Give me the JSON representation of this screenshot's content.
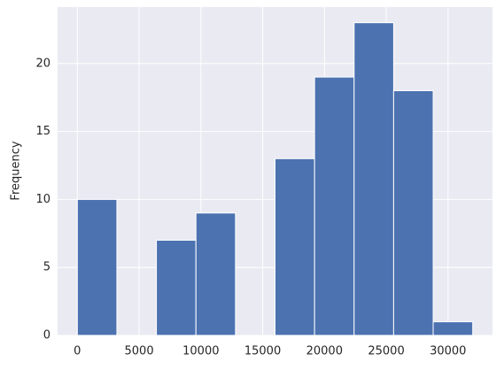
{
  "chart_data": {
    "type": "histogram",
    "y_label": "Frequency",
    "bins": [
      0,
      3200,
      6400,
      9600,
      12800,
      16000,
      19200,
      22400,
      25600,
      28800,
      32000
    ],
    "values": [
      10,
      0,
      7,
      9,
      0,
      13,
      19,
      23,
      18,
      1
    ],
    "color": "#4c72b0",
    "xlim": [
      -1600,
      33600
    ],
    "xticks": [
      0,
      5000,
      10000,
      15000,
      20000,
      25000,
      30000
    ],
    "ylim": [
      0,
      24.15
    ],
    "yticks": [
      0,
      5,
      10,
      15,
      20
    ],
    "grid": true
  }
}
